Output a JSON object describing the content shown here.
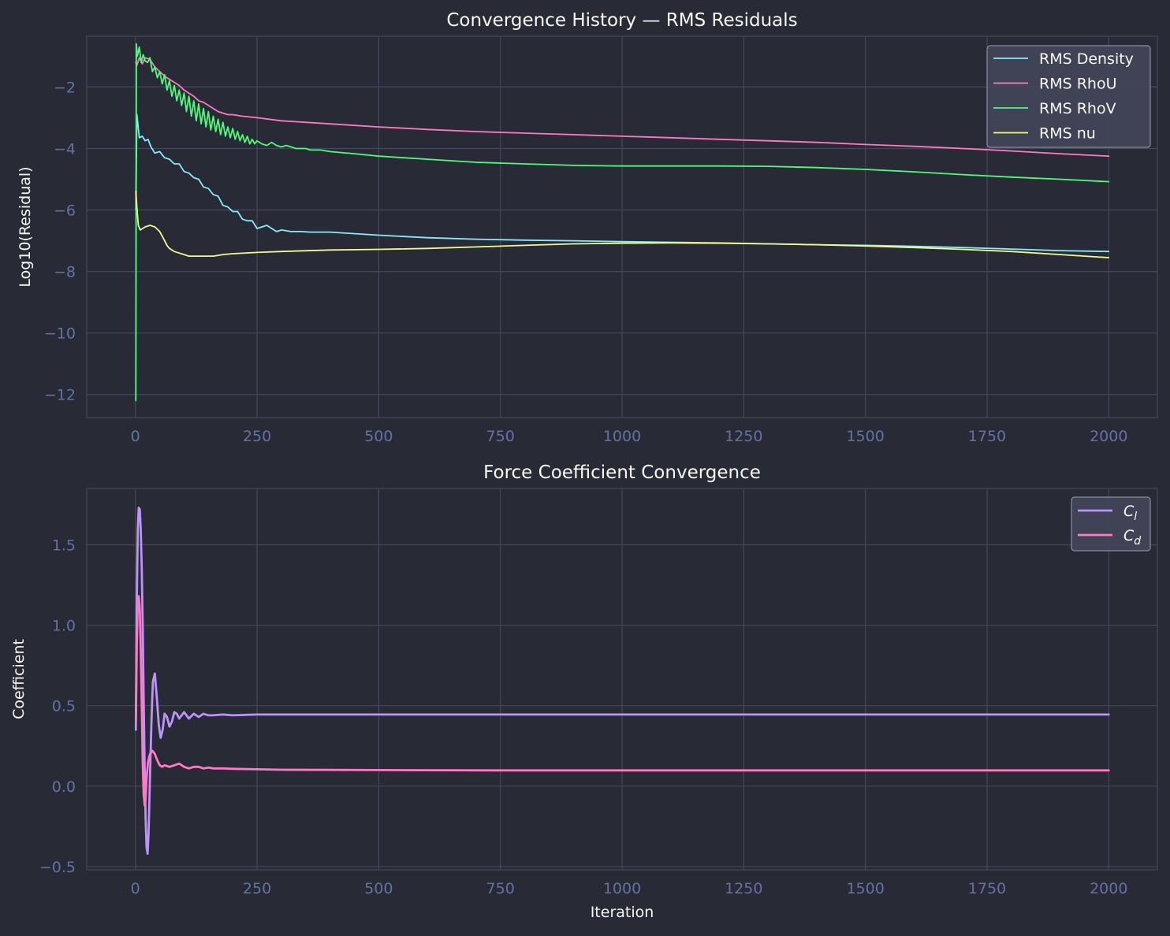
{
  "theme": {
    "background": "#282a36",
    "panel": "#282a36",
    "grid": "#44475a",
    "tick_label": "#6272a4",
    "text": "#f8f8f2"
  },
  "chart_data": [
    {
      "type": "line",
      "title": "Convergence History — RMS Residuals",
      "xlabel": "",
      "ylabel": "Log10(Residual)",
      "xlim": [
        -100,
        2100
      ],
      "ylim": [
        -12.75,
        -0.35
      ],
      "xticks": [
        0,
        250,
        500,
        750,
        1000,
        1250,
        1500,
        1750,
        2000
      ],
      "xtick_labels": [
        "0",
        "250",
        "500",
        "750",
        "1000",
        "1250",
        "1500",
        "1750",
        "2000"
      ],
      "yticks": [
        -2,
        -4,
        -6,
        -8,
        -10,
        -12
      ],
      "ytick_labels": [
        "−2",
        "−4",
        "−6",
        "−8",
        "−10",
        "−12"
      ],
      "grid": true,
      "legend": "top-right",
      "series": [
        {
          "name": "RMS Density",
          "color": "#8be9fd",
          "x": [
            1,
            3,
            8,
            14,
            20,
            26,
            32,
            40,
            50,
            60,
            70,
            80,
            90,
            100,
            110,
            120,
            130,
            140,
            150,
            160,
            170,
            180,
            190,
            200,
            210,
            220,
            230,
            240,
            250,
            260,
            270,
            280,
            290,
            300,
            320,
            340,
            360,
            400,
            500,
            600,
            700,
            800,
            900,
            1000,
            1100,
            1200,
            1300,
            1400,
            1500,
            1600,
            1700,
            1800,
            1900,
            2000
          ],
          "y": [
            -6.0,
            -2.9,
            -3.65,
            -3.6,
            -3.75,
            -3.7,
            -3.95,
            -4.15,
            -4.1,
            -4.3,
            -4.35,
            -4.5,
            -4.5,
            -4.75,
            -4.8,
            -4.95,
            -5.0,
            -5.25,
            -5.3,
            -5.5,
            -5.55,
            -5.85,
            -5.9,
            -6.05,
            -6.05,
            -6.3,
            -6.35,
            -6.35,
            -6.6,
            -6.55,
            -6.5,
            -6.6,
            -6.7,
            -6.65,
            -6.7,
            -6.7,
            -6.72,
            -6.72,
            -6.82,
            -6.9,
            -6.95,
            -6.98,
            -7.0,
            -7.03,
            -7.05,
            -7.07,
            -7.1,
            -7.13,
            -7.15,
            -7.18,
            -7.22,
            -7.27,
            -7.32,
            -7.35
          ]
        },
        {
          "name": "RMS RhoU",
          "color": "#ff79c6",
          "x": [
            1,
            3,
            8,
            14,
            20,
            30,
            40,
            50,
            60,
            70,
            80,
            90,
            100,
            110,
            120,
            130,
            140,
            150,
            160,
            170,
            180,
            190,
            200,
            220,
            250,
            300,
            400,
            500,
            600,
            700,
            800,
            900,
            1000,
            1100,
            1200,
            1300,
            1400,
            1500,
            1600,
            1700,
            1800,
            1900,
            2000
          ],
          "y": [
            -1.2,
            -1.3,
            -1.05,
            -1.25,
            -1.05,
            -1.1,
            -1.35,
            -1.5,
            -1.65,
            -1.75,
            -1.85,
            -1.95,
            -2.1,
            -2.2,
            -2.3,
            -2.45,
            -2.5,
            -2.6,
            -2.7,
            -2.8,
            -2.85,
            -2.9,
            -2.9,
            -2.95,
            -3.0,
            -3.1,
            -3.2,
            -3.3,
            -3.38,
            -3.45,
            -3.5,
            -3.55,
            -3.6,
            -3.65,
            -3.7,
            -3.75,
            -3.8,
            -3.87,
            -3.93,
            -4.0,
            -4.08,
            -4.17,
            -4.25
          ]
        },
        {
          "name": "RMS RhoV",
          "color": "#50fa7b",
          "x": [
            1,
            2,
            4,
            8,
            12,
            16,
            20,
            25,
            30,
            35,
            40,
            45,
            50,
            55,
            60,
            65,
            70,
            75,
            80,
            85,
            90,
            95,
            100,
            105,
            110,
            115,
            120,
            125,
            130,
            135,
            140,
            145,
            150,
            155,
            160,
            165,
            170,
            175,
            180,
            185,
            190,
            195,
            200,
            205,
            210,
            215,
            220,
            225,
            230,
            235,
            240,
            245,
            250,
            260,
            270,
            280,
            290,
            300,
            310,
            320,
            330,
            340,
            350,
            360,
            380,
            400,
            450,
            500,
            600,
            700,
            800,
            900,
            1000,
            1100,
            1200,
            1300,
            1400,
            1500,
            1600,
            1700,
            1800,
            1900,
            2000
          ],
          "y": [
            -12.2,
            -0.6,
            -1.0,
            -0.7,
            -1.2,
            -0.95,
            -1.15,
            -1.2,
            -1.05,
            -1.5,
            -1.35,
            -1.7,
            -1.5,
            -1.9,
            -1.6,
            -2.1,
            -1.8,
            -2.3,
            -1.95,
            -2.45,
            -2.1,
            -2.6,
            -2.2,
            -2.8,
            -2.3,
            -2.95,
            -2.45,
            -3.1,
            -2.55,
            -3.2,
            -2.7,
            -3.3,
            -2.8,
            -3.4,
            -2.95,
            -3.45,
            -3.05,
            -3.55,
            -3.15,
            -3.6,
            -3.3,
            -3.65,
            -3.35,
            -3.7,
            -3.45,
            -3.75,
            -3.55,
            -3.8,
            -3.6,
            -3.85,
            -3.7,
            -3.85,
            -3.75,
            -3.85,
            -3.9,
            -3.8,
            -3.9,
            -3.95,
            -3.9,
            -3.95,
            -4.0,
            -4.0,
            -4.0,
            -4.05,
            -4.05,
            -4.1,
            -4.17,
            -4.25,
            -4.35,
            -4.45,
            -4.5,
            -4.55,
            -4.57,
            -4.57,
            -4.57,
            -4.58,
            -4.62,
            -4.68,
            -4.76,
            -4.85,
            -4.93,
            -5.0,
            -5.08
          ]
        },
        {
          "name": "RMS nu",
          "color": "#f1fa8c",
          "x": [
            1,
            3,
            6,
            10,
            15,
            20,
            30,
            40,
            50,
            55,
            60,
            65,
            70,
            80,
            90,
            100,
            110,
            120,
            140,
            160,
            180,
            200,
            250,
            300,
            400,
            500,
            600,
            700,
            800,
            900,
            1000,
            1100,
            1200,
            1300,
            1400,
            1500,
            1600,
            1700,
            1800,
            1900,
            2000
          ],
          "y": [
            -5.4,
            -5.9,
            -6.5,
            -6.65,
            -6.6,
            -6.55,
            -6.5,
            -6.55,
            -6.7,
            -6.85,
            -7.0,
            -7.15,
            -7.25,
            -7.35,
            -7.4,
            -7.45,
            -7.5,
            -7.5,
            -7.5,
            -7.5,
            -7.45,
            -7.42,
            -7.38,
            -7.35,
            -7.3,
            -7.28,
            -7.25,
            -7.2,
            -7.15,
            -7.1,
            -7.08,
            -7.07,
            -7.08,
            -7.1,
            -7.13,
            -7.17,
            -7.22,
            -7.28,
            -7.35,
            -7.45,
            -7.55
          ]
        }
      ]
    },
    {
      "type": "line",
      "title": "Force Coefficient Convergence",
      "xlabel": "Iteration",
      "ylabel": "Coefficient",
      "xlim": [
        -100,
        2100
      ],
      "ylim": [
        -0.52,
        1.85
      ],
      "xticks": [
        0,
        250,
        500,
        750,
        1000,
        1250,
        1500,
        1750,
        2000
      ],
      "xtick_labels": [
        "0",
        "250",
        "500",
        "750",
        "1000",
        "1250",
        "1500",
        "1750",
        "2000"
      ],
      "yticks": [
        1.5,
        1.0,
        0.5,
        0.0,
        -0.5
      ],
      "ytick_labels": [
        "1.5",
        "1.0",
        "0.5",
        "0.0",
        "−0.5"
      ],
      "grid": true,
      "legend": "top-right",
      "series": [
        {
          "name": "C_l",
          "label_base": "C",
          "label_sub": "l",
          "color": "#bd93f9",
          "x": [
            1,
            3,
            5,
            7,
            9,
            11,
            13,
            15,
            17,
            19,
            21,
            23,
            25,
            27,
            30,
            33,
            36,
            40,
            44,
            48,
            52,
            56,
            60,
            65,
            70,
            75,
            80,
            85,
            90,
            100,
            110,
            120,
            130,
            140,
            150,
            160,
            180,
            200,
            250,
            300,
            500,
            750,
            1000,
            1250,
            1500,
            1750,
            2000
          ],
          "y": [
            0.35,
            1.2,
            1.6,
            1.73,
            1.72,
            1.6,
            1.35,
            1.0,
            0.55,
            0.1,
            -0.2,
            -0.38,
            -0.42,
            -0.3,
            0.05,
            0.4,
            0.65,
            0.7,
            0.55,
            0.38,
            0.3,
            0.35,
            0.45,
            0.43,
            0.37,
            0.4,
            0.46,
            0.45,
            0.42,
            0.46,
            0.42,
            0.45,
            0.43,
            0.45,
            0.44,
            0.44,
            0.445,
            0.44,
            0.445,
            0.445,
            0.445,
            0.445,
            0.445,
            0.445,
            0.445,
            0.445,
            0.445
          ]
        },
        {
          "name": "C_d",
          "label_base": "C",
          "label_sub": "d",
          "color": "#ff79c6",
          "x": [
            1,
            3,
            5,
            7,
            9,
            11,
            13,
            15,
            17,
            19,
            21,
            23,
            26,
            30,
            35,
            40,
            45,
            50,
            55,
            60,
            70,
            80,
            90,
            100,
            110,
            120,
            130,
            140,
            150,
            160,
            180,
            200,
            250,
            300,
            500,
            750,
            1000,
            1250,
            1500,
            1750,
            2000
          ],
          "y": [
            0.4,
            0.9,
            1.15,
            1.18,
            1.1,
            0.85,
            0.5,
            0.15,
            -0.05,
            -0.12,
            -0.08,
            0.05,
            0.15,
            0.2,
            0.22,
            0.2,
            0.16,
            0.13,
            0.12,
            0.13,
            0.12,
            0.13,
            0.14,
            0.12,
            0.11,
            0.12,
            0.12,
            0.11,
            0.115,
            0.11,
            0.11,
            0.108,
            0.105,
            0.102,
            0.1,
            0.098,
            0.098,
            0.098,
            0.098,
            0.098,
            0.098
          ]
        }
      ]
    }
  ]
}
